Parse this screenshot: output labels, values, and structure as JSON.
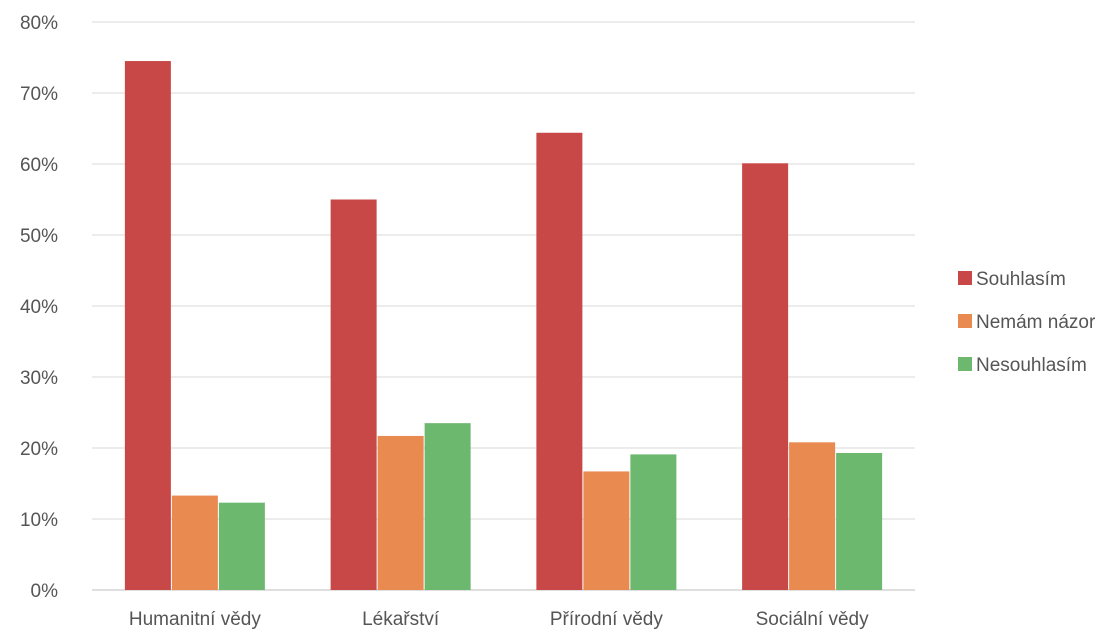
{
  "chart_data": {
    "type": "bar",
    "title": "",
    "xlabel": "",
    "ylabel": "",
    "ylim": [
      0,
      80
    ],
    "y_tick_format": "percent",
    "y_ticks": [
      "0%",
      "10%",
      "20%",
      "30%",
      "40%",
      "50%",
      "60%",
      "70%",
      "80%"
    ],
    "categories": [
      "Humanitní vědy",
      "Lékařství",
      "Přírodní vědy",
      "Sociální vědy"
    ],
    "series": [
      {
        "name": "Souhlasím",
        "color": "#c84848",
        "values": [
          74.5,
          55.0,
          64.4,
          60.1
        ]
      },
      {
        "name": "Nemám názor",
        "color": "#e98a50",
        "values": [
          13.3,
          21.7,
          16.7,
          20.8
        ]
      },
      {
        "name": "Nesouhlasím",
        "color": "#6cb86e",
        "values": [
          12.3,
          23.5,
          19.1,
          19.3
        ]
      }
    ],
    "grid": true,
    "legend_position": "right"
  }
}
